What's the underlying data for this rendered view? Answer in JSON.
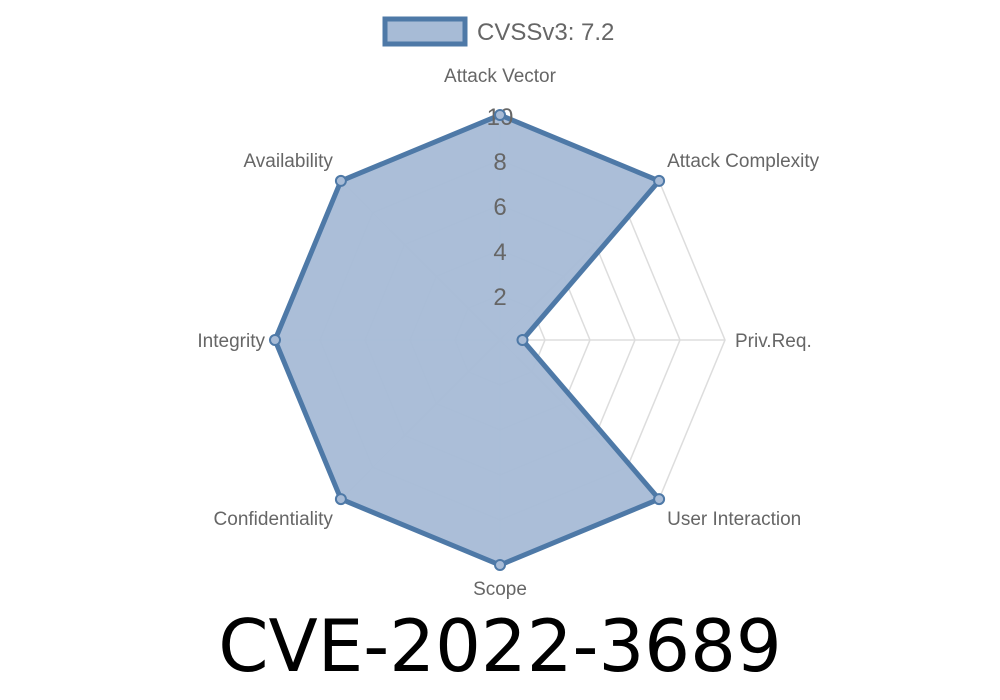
{
  "chart_data": {
    "type": "radar",
    "legend": {
      "position": "top",
      "entries": [
        "CVSSv3: 7.2"
      ]
    },
    "axes": [
      "Attack Vector",
      "Attack Complexity",
      "Priv.Req.",
      "User Interaction",
      "Scope",
      "Confidentiality",
      "Integrity",
      "Availability"
    ],
    "series": [
      {
        "name": "CVSSv3: 7.2",
        "values": [
          10,
          10,
          1,
          10,
          10,
          10,
          10,
          10
        ]
      }
    ],
    "rlim": [
      0,
      10
    ],
    "ticks": [
      2,
      4,
      6,
      8,
      10
    ],
    "tick_labels": [
      "2",
      "4",
      "6",
      "8",
      "10"
    ],
    "grid": true,
    "colors": {
      "line": "#4e79a7",
      "fill": "#a7bbd6",
      "grid": "#dddddd",
      "text": "#666666"
    }
  },
  "title": "CVE-2022-3689"
}
